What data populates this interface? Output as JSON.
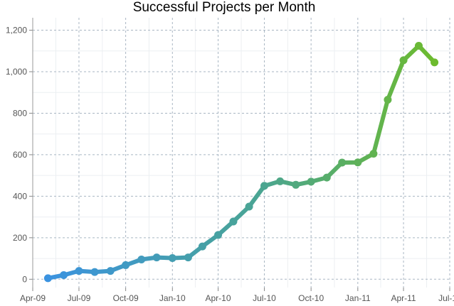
{
  "chart_data": {
    "type": "line",
    "title": "Successful Projects per Month",
    "xlabel": "",
    "ylabel": "",
    "x_range": [
      "2009-04-01",
      "2011-07-01"
    ],
    "ylim": [
      -40,
      1260
    ],
    "grid": true,
    "legend": "none",
    "x_ticks": [
      {
        "date": "2009-04-01",
        "label": "Apr-09"
      },
      {
        "date": "2009-07-01",
        "label": "Jul-09"
      },
      {
        "date": "2009-10-01",
        "label": "Oct-09"
      },
      {
        "date": "2010-01-01",
        "label": "Jan-10"
      },
      {
        "date": "2010-04-01",
        "label": "Apr-10"
      },
      {
        "date": "2010-07-01",
        "label": "Jul-10"
      },
      {
        "date": "2010-10-01",
        "label": "Oct-10"
      },
      {
        "date": "2011-01-01",
        "label": "Jan-11"
      },
      {
        "date": "2011-04-01",
        "label": "Apr-11"
      },
      {
        "date": "2011-07-01",
        "label": "Jul-11"
      }
    ],
    "y_ticks": [
      {
        "value": 0,
        "label": "0"
      },
      {
        "value": 200,
        "label": "200"
      },
      {
        "value": 400,
        "label": "400"
      },
      {
        "value": 600,
        "label": "600"
      },
      {
        "value": 800,
        "label": "800"
      },
      {
        "value": 1000,
        "label": "1,000"
      },
      {
        "value": 1200,
        "label": "1,200"
      }
    ],
    "gradient_colors": [
      "#3b93e0",
      "#4aa592",
      "#6dbb2e"
    ],
    "series": [
      {
        "points": [
          {
            "x": "2009-05-01",
            "y": 5
          },
          {
            "x": "2009-06-01",
            "y": 20
          },
          {
            "x": "2009-07-01",
            "y": 40
          },
          {
            "x": "2009-08-01",
            "y": 35
          },
          {
            "x": "2009-09-01",
            "y": 40
          },
          {
            "x": "2009-10-01",
            "y": 68
          },
          {
            "x": "2009-11-01",
            "y": 95
          },
          {
            "x": "2009-12-01",
            "y": 105
          },
          {
            "x": "2010-01-01",
            "y": 102
          },
          {
            "x": "2010-02-01",
            "y": 105
          },
          {
            "x": "2010-03-01",
            "y": 158
          },
          {
            "x": "2010-04-01",
            "y": 213
          },
          {
            "x": "2010-05-01",
            "y": 278
          },
          {
            "x": "2010-06-01",
            "y": 350
          },
          {
            "x": "2010-07-01",
            "y": 450
          },
          {
            "x": "2010-08-01",
            "y": 472
          },
          {
            "x": "2010-09-01",
            "y": 455
          },
          {
            "x": "2010-10-01",
            "y": 470
          },
          {
            "x": "2010-11-01",
            "y": 490
          },
          {
            "x": "2010-12-01",
            "y": 562
          },
          {
            "x": "2011-01-01",
            "y": 563
          },
          {
            "x": "2011-02-01",
            "y": 605
          },
          {
            "x": "2011-03-01",
            "y": 865
          },
          {
            "x": "2011-04-01",
            "y": 1055
          },
          {
            "x": "2011-05-01",
            "y": 1125
          },
          {
            "x": "2011-06-01",
            "y": 1045
          }
        ]
      }
    ]
  }
}
